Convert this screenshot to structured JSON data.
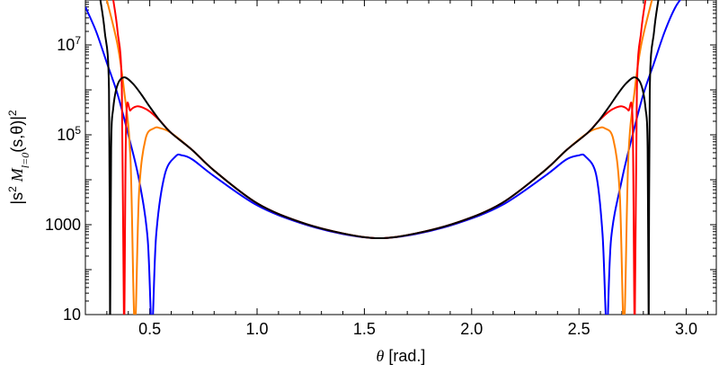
{
  "chart_data": {
    "type": "line",
    "title": "",
    "xlabel": {
      "symbol": "θ",
      "unit": "[rad.]"
    },
    "ylabel": {
      "pre": "|s",
      "sq": "2",
      "m": "M",
      "sub": "l=0",
      "args": "(s,θ)|",
      "pow": "2"
    },
    "yscale": "log",
    "xlim": [
      0.2,
      3.14
    ],
    "ylim": [
      10,
      100000000
    ],
    "x_ticks": [
      {
        "value": 0.5,
        "label": "0.5"
      },
      {
        "value": 1.0,
        "label": "1.0"
      },
      {
        "value": 1.5,
        "label": "1.5"
      },
      {
        "value": 2.0,
        "label": "2.0"
      },
      {
        "value": 2.5,
        "label": "2.5"
      },
      {
        "value": 3.0,
        "label": "3.0"
      }
    ],
    "y_ticks": [
      {
        "value": 10,
        "base": "10",
        "exp": ""
      },
      {
        "value": 1000,
        "base": "1000",
        "exp": ""
      },
      {
        "value": 100000,
        "base": "10",
        "exp": "5"
      },
      {
        "value": 10000000,
        "base": "10",
        "exp": "7"
      }
    ],
    "series": [
      {
        "color": "#0000ff",
        "x": [
          0.2,
          0.25,
          0.3,
          0.35,
          0.4,
          0.45,
          0.49,
          0.51,
          0.53,
          0.57,
          0.62,
          0.65,
          0.7,
          0.8,
          1.0,
          1.2,
          1.4,
          1.57,
          1.74,
          1.94,
          2.14,
          2.34,
          2.44,
          2.5,
          2.53,
          2.58,
          2.61,
          2.63,
          2.65,
          2.7,
          2.75,
          2.8,
          2.85,
          2.9,
          2.95,
          3.0
        ],
        "y": [
          70000000,
          20000000,
          4000000,
          800000,
          100000,
          10000,
          500,
          5,
          600,
          13000,
          33000,
          35000,
          28000,
          12000,
          2700,
          1100,
          620,
          500,
          620,
          1100,
          2700,
          12000,
          28000,
          35000,
          33000,
          13000,
          600,
          5,
          500,
          10000,
          100000,
          800000,
          4000000,
          20000000,
          70000000,
          150000000
        ]
      },
      {
        "color": "#ff8000",
        "x": [
          0.3,
          0.35,
          0.38,
          0.41,
          0.43,
          0.45,
          0.48,
          0.52,
          0.55,
          0.6,
          0.7,
          0.8,
          1.0,
          1.2,
          1.4,
          1.57,
          1.74,
          1.94,
          2.14,
          2.34,
          2.44,
          2.54,
          2.59,
          2.62,
          2.66,
          2.69,
          2.71,
          2.73,
          2.76,
          2.79,
          2.84
        ],
        "y": [
          100000000,
          10000000,
          1000000,
          30000,
          5,
          5000,
          80000,
          140000,
          140000,
          110000,
          45000,
          16000,
          3000,
          1150,
          640,
          500,
          640,
          1150,
          3000,
          16000,
          45000,
          110000,
          140000,
          140000,
          80000,
          5000,
          5,
          30000,
          1000000,
          10000000,
          100000000
        ]
      },
      {
        "color": "#ff0000",
        "x": [
          0.33,
          0.35,
          0.37,
          0.38,
          0.39,
          0.41,
          0.44,
          0.47,
          0.5,
          0.55,
          0.6,
          0.7,
          0.8,
          1.0,
          1.2,
          1.4,
          1.57,
          1.74,
          1.94,
          2.14,
          2.34,
          2.44,
          2.54,
          2.59,
          2.64,
          2.67,
          2.7,
          2.73,
          2.75,
          2.76,
          2.77,
          2.79,
          2.81
        ],
        "y": [
          100000000,
          20000000,
          1000000,
          5,
          200000,
          350000,
          430000,
          400000,
          330000,
          200000,
          110000,
          45000,
          16000,
          3000,
          1150,
          640,
          500,
          640,
          1150,
          3000,
          16000,
          45000,
          110000,
          200000,
          330000,
          400000,
          430000,
          350000,
          200000,
          5,
          1000000,
          20000000,
          100000000
        ]
      },
      {
        "color": "#000000",
        "x": [
          0.27,
          0.29,
          0.31,
          0.315,
          0.32,
          0.33,
          0.35,
          0.38,
          0.42,
          0.46,
          0.5,
          0.55,
          0.6,
          0.7,
          0.8,
          1.0,
          1.2,
          1.4,
          1.57,
          1.74,
          1.94,
          2.14,
          2.34,
          2.44,
          2.54,
          2.59,
          2.64,
          2.68,
          2.72,
          2.76,
          2.79,
          2.81,
          2.82,
          2.825,
          2.83,
          2.85,
          2.87
        ],
        "y": [
          100000000,
          20000000,
          1000000,
          5,
          50000,
          400000,
          1300000,
          1900000,
          1400000,
          800000,
          420000,
          200000,
          110000,
          45000,
          16000,
          3000,
          1150,
          640,
          500,
          640,
          1150,
          3000,
          16000,
          45000,
          110000,
          200000,
          420000,
          800000,
          1400000,
          1900000,
          1300000,
          400000,
          50000,
          5,
          1000000,
          20000000,
          100000000
        ]
      }
    ]
  }
}
